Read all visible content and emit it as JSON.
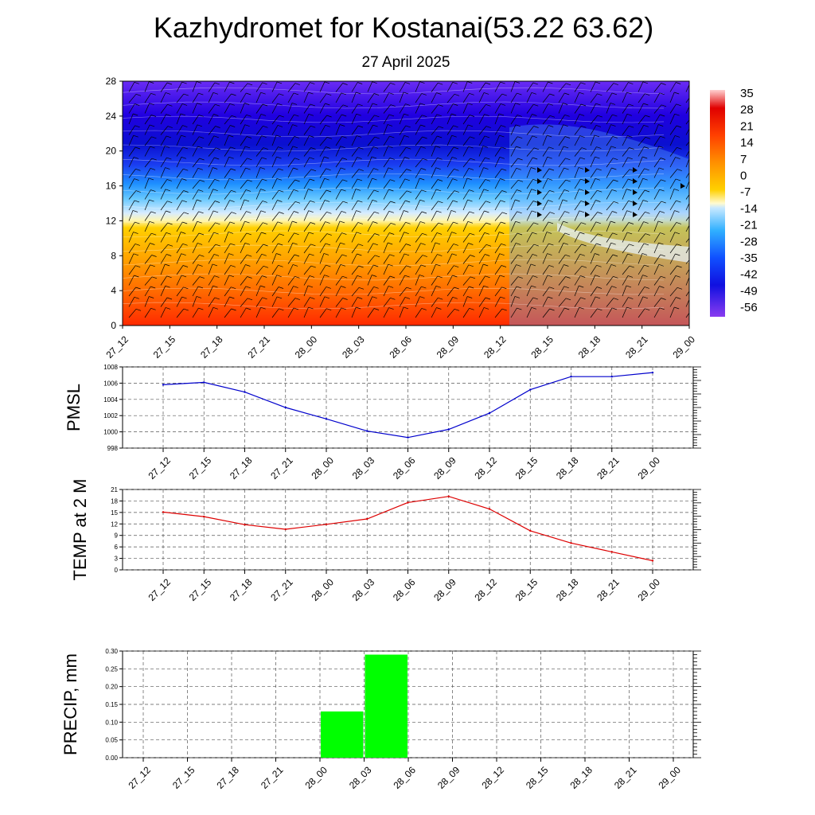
{
  "title": "Kazhydromet for Kostanai(53.22 63.62)",
  "subtitle": "27 April 2025",
  "colors": {
    "pmsl_line": "#0000cc",
    "temp_line": "#dd0000",
    "precip_bar": "#00ff00",
    "grid": "#444444"
  },
  "chart_data": [
    {
      "type": "heatmap",
      "name": "cross-section",
      "x_ticks": [
        "27_12",
        "27_15",
        "27_18",
        "27_21",
        "28_00",
        "28_03",
        "28_06",
        "28_09",
        "28_12",
        "28_15",
        "28_18",
        "28_21",
        "29_00"
      ],
      "y_ticks": [
        "0",
        "4",
        "8",
        "12",
        "16",
        "20",
        "24",
        "28"
      ],
      "ylim": [
        0,
        28
      ],
      "colorbar_labels": [
        "35",
        "28",
        "21",
        "14",
        "7",
        "0",
        "-7",
        "-14",
        "-21",
        "-28",
        "-35",
        "-42",
        "-49",
        "-56"
      ],
      "colorscale": "blue-white-yellow-red",
      "wind_barbs": true
    },
    {
      "type": "line",
      "name": "pmsl",
      "ylabel": "PMSL",
      "categories": [
        "27_12",
        "27_15",
        "27_18",
        "27_21",
        "28_00",
        "28_03",
        "28_06",
        "28_09",
        "28_12",
        "28_15",
        "28_18",
        "28_21",
        "29_00"
      ],
      "values": [
        1005.8,
        1006.1,
        1004.9,
        1003.0,
        1001.6,
        1000.1,
        999.3,
        1000.3,
        1002.3,
        1005.2,
        1006.8,
        1006.8,
        1007.3
      ],
      "ylim": [
        998,
        1008
      ],
      "y_ticks": [
        "998",
        "1000",
        "1002",
        "1004",
        "1006",
        "1008"
      ]
    },
    {
      "type": "line",
      "name": "temp",
      "ylabel": "TEMP at 2 M",
      "categories": [
        "27_12",
        "27_15",
        "27_18",
        "27_21",
        "28_00",
        "28_03",
        "28_06",
        "28_09",
        "28_12",
        "28_15",
        "28_18",
        "28_21",
        "29_00"
      ],
      "values": [
        15.1,
        13.9,
        11.8,
        10.6,
        11.9,
        13.3,
        17.6,
        19.2,
        15.9,
        10.2,
        7.0,
        4.7,
        2.4
      ],
      "ylim": [
        0,
        21
      ],
      "y_ticks": [
        "0",
        "3",
        "6",
        "9",
        "12",
        "15",
        "18",
        "21"
      ]
    },
    {
      "type": "bar",
      "name": "precip",
      "ylabel": "PRECIP, mm",
      "categories": [
        "27_12",
        "27_15",
        "27_18",
        "27_21",
        "28_00",
        "28_03",
        "28_06",
        "28_09",
        "28_12",
        "28_15",
        "28_18",
        "28_21",
        "29_00"
      ],
      "values": [
        0,
        0,
        0,
        0,
        0,
        0.13,
        0.29,
        0,
        0,
        0,
        0,
        0,
        0
      ],
      "ylim": [
        0,
        0.3
      ],
      "y_ticks": [
        "0.00",
        "0.05",
        "0.10",
        "0.15",
        "0.20",
        "0.25",
        "0.30"
      ]
    }
  ]
}
